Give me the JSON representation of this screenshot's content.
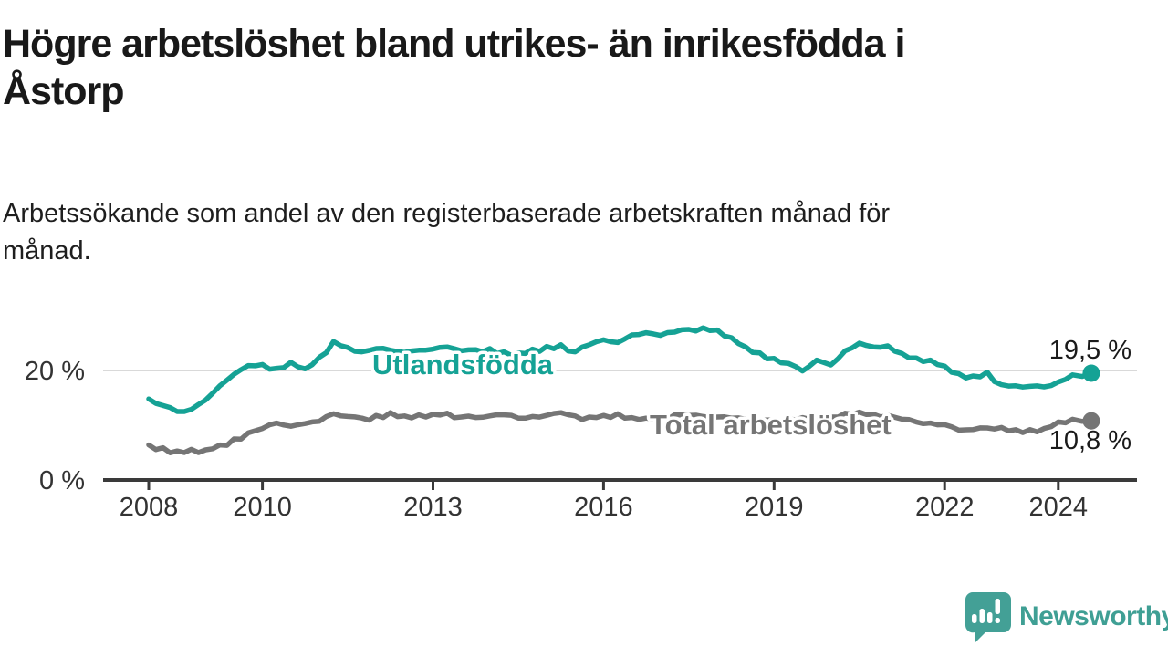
{
  "title": "Högre arbetslöshet bland utrikes- än inrikesfödda i Åstorp",
  "title_lines": [
    "Högre arbetslöshet bland utrikes- än inrikesfödda i",
    "Åstorp"
  ],
  "subtitle": "Arbetssökande som andel av den registerbaserade arbetskraften månad för månad.",
  "subtitle_lines": [
    "Arbetssökande som andel av den registerbaserade arbetskraften månad för",
    "månad."
  ],
  "branding": {
    "logo_text": "Newsworthy",
    "logo_icon": "newsworthy-speech-bubble-bar-chart-icon",
    "logo_color": "#3f9f94",
    "logo_bubble_color": "#43a096"
  },
  "colors": {
    "background": "#ffffff",
    "title_text": "#191919",
    "axis": "#3a3a3a",
    "tick_label": "#333333",
    "gridline": "#d9d9d9",
    "series_foreign_born": "#15a295",
    "series_total": "#757575",
    "end_label_text": "#1a1a1a"
  },
  "chart_data": {
    "type": "line",
    "x_unit": "year (decimal; monthly share of registered labour force)",
    "xlim": [
      2007.2,
      2025.3
    ],
    "ylim": [
      0,
      30
    ],
    "grid": "single horizontal gridline at 20%",
    "y_gridlines": [
      20
    ],
    "y_ticks": [
      {
        "value": 0,
        "label": "0 %"
      },
      {
        "value": 20,
        "label": "20 %"
      }
    ],
    "x_ticks": [
      2008,
      2010,
      2013,
      2016,
      2019,
      2022,
      2024
    ],
    "legend_position": "inline labels on lines",
    "series": [
      {
        "name": "Utlandsfödda",
        "color": "#15a295",
        "end_value": 19.5,
        "end_label": "19,5 %",
        "points": [
          [
            2008.0,
            14.8
          ],
          [
            2008.25,
            13.6
          ],
          [
            2008.5,
            12.5
          ],
          [
            2008.75,
            12.9
          ],
          [
            2009.0,
            14.6
          ],
          [
            2009.25,
            17.2
          ],
          [
            2009.5,
            19.3
          ],
          [
            2009.75,
            20.9
          ],
          [
            2010.0,
            21.1
          ],
          [
            2010.25,
            20.4
          ],
          [
            2010.5,
            21.5
          ],
          [
            2010.75,
            20.3
          ],
          [
            2011.0,
            22.4
          ],
          [
            2011.25,
            25.3
          ],
          [
            2011.5,
            24.2
          ],
          [
            2011.75,
            23.4
          ],
          [
            2012.0,
            24.0
          ],
          [
            2012.25,
            23.7
          ],
          [
            2012.5,
            23.3
          ],
          [
            2012.75,
            23.7
          ],
          [
            2013.0,
            23.9
          ],
          [
            2013.25,
            24.3
          ],
          [
            2013.5,
            23.6
          ],
          [
            2013.75,
            23.8
          ],
          [
            2014.0,
            24.0
          ],
          [
            2014.25,
            23.4
          ],
          [
            2014.5,
            23.2
          ],
          [
            2014.75,
            23.9
          ],
          [
            2015.0,
            24.4
          ],
          [
            2015.25,
            24.7
          ],
          [
            2015.5,
            23.4
          ],
          [
            2015.75,
            24.7
          ],
          [
            2016.0,
            25.6
          ],
          [
            2016.25,
            25.1
          ],
          [
            2016.5,
            26.5
          ],
          [
            2016.75,
            26.9
          ],
          [
            2017.0,
            26.4
          ],
          [
            2017.25,
            27.0
          ],
          [
            2017.5,
            27.5
          ],
          [
            2017.75,
            27.8
          ],
          [
            2018.0,
            27.4
          ],
          [
            2018.25,
            26.0
          ],
          [
            2018.5,
            24.3
          ],
          [
            2018.75,
            23.2
          ],
          [
            2019.0,
            22.2
          ],
          [
            2019.25,
            21.3
          ],
          [
            2019.5,
            19.9
          ],
          [
            2019.75,
            21.9
          ],
          [
            2020.0,
            21.0
          ],
          [
            2020.25,
            23.6
          ],
          [
            2020.5,
            25.0
          ],
          [
            2020.75,
            24.3
          ],
          [
            2021.0,
            24.5
          ],
          [
            2021.25,
            23.1
          ],
          [
            2021.5,
            22.3
          ],
          [
            2021.75,
            21.9
          ],
          [
            2022.0,
            20.8
          ],
          [
            2022.25,
            19.4
          ],
          [
            2022.5,
            19.0
          ],
          [
            2022.75,
            19.7
          ],
          [
            2023.0,
            17.4
          ],
          [
            2023.25,
            17.2
          ],
          [
            2023.5,
            17.1
          ],
          [
            2023.75,
            17.0
          ],
          [
            2024.0,
            17.9
          ],
          [
            2024.25,
            19.2
          ],
          [
            2024.42,
            18.9
          ],
          [
            2024.58,
            19.5
          ]
        ]
      },
      {
        "name": "Total arbetslöshet",
        "color": "#757575",
        "end_value": 10.8,
        "end_label": "10,8 %",
        "points": [
          [
            2008.0,
            6.4
          ],
          [
            2008.25,
            5.9
          ],
          [
            2008.5,
            5.3
          ],
          [
            2008.75,
            5.6
          ],
          [
            2009.0,
            5.5
          ],
          [
            2009.25,
            6.4
          ],
          [
            2009.5,
            7.5
          ],
          [
            2009.75,
            8.6
          ],
          [
            2010.0,
            9.4
          ],
          [
            2010.25,
            10.4
          ],
          [
            2010.5,
            9.8
          ],
          [
            2010.75,
            10.3
          ],
          [
            2011.0,
            10.7
          ],
          [
            2011.25,
            12.1
          ],
          [
            2011.5,
            11.6
          ],
          [
            2011.75,
            11.3
          ],
          [
            2012.0,
            11.8
          ],
          [
            2012.25,
            12.3
          ],
          [
            2012.5,
            11.7
          ],
          [
            2012.75,
            11.9
          ],
          [
            2013.0,
            12.0
          ],
          [
            2013.25,
            12.2
          ],
          [
            2013.5,
            11.5
          ],
          [
            2013.75,
            11.4
          ],
          [
            2014.0,
            11.7
          ],
          [
            2014.25,
            11.9
          ],
          [
            2014.5,
            11.3
          ],
          [
            2014.75,
            11.6
          ],
          [
            2015.0,
            11.8
          ],
          [
            2015.25,
            12.3
          ],
          [
            2015.5,
            11.7
          ],
          [
            2015.75,
            11.5
          ],
          [
            2016.0,
            11.8
          ],
          [
            2016.25,
            12.1
          ],
          [
            2016.5,
            11.4
          ],
          [
            2016.75,
            11.3
          ],
          [
            2017.0,
            11.5
          ],
          [
            2017.25,
            11.9
          ],
          [
            2017.5,
            11.8
          ],
          [
            2017.75,
            11.6
          ],
          [
            2018.0,
            11.5
          ],
          [
            2018.25,
            11.3
          ],
          [
            2018.5,
            11.1
          ],
          [
            2018.75,
            11.0
          ],
          [
            2019.0,
            11.0
          ],
          [
            2019.25,
            11.2
          ],
          [
            2019.5,
            11.4
          ],
          [
            2019.75,
            11.3
          ],
          [
            2020.0,
            11.5
          ],
          [
            2020.25,
            12.2
          ],
          [
            2020.5,
            12.4
          ],
          [
            2020.75,
            12.0
          ],
          [
            2021.0,
            11.8
          ],
          [
            2021.25,
            11.1
          ],
          [
            2021.5,
            10.6
          ],
          [
            2021.75,
            10.4
          ],
          [
            2022.0,
            10.1
          ],
          [
            2022.25,
            9.1
          ],
          [
            2022.5,
            9.2
          ],
          [
            2022.75,
            9.5
          ],
          [
            2023.0,
            9.6
          ],
          [
            2023.25,
            9.2
          ],
          [
            2023.5,
            9.2
          ],
          [
            2023.75,
            9.4
          ],
          [
            2024.0,
            10.6
          ],
          [
            2024.25,
            11.1
          ],
          [
            2024.42,
            10.7
          ],
          [
            2024.58,
            10.8
          ]
        ]
      }
    ]
  }
}
